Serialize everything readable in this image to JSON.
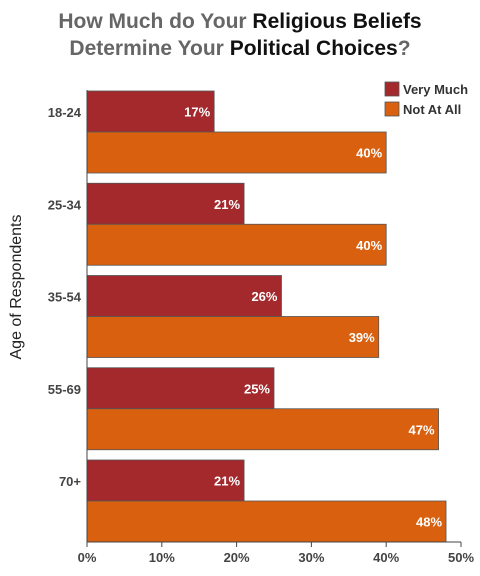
{
  "title": {
    "line1": [
      {
        "text": "How Much do Your ",
        "emphasis": false
      },
      {
        "text": "Religious Beliefs",
        "emphasis": true
      }
    ],
    "line2": [
      {
        "text": "Determine Your ",
        "emphasis": false
      },
      {
        "text": "Political Choices",
        "emphasis": true
      },
      {
        "text": "?",
        "emphasis": false
      }
    ]
  },
  "colors": {
    "very_much": "#a3292c",
    "not_at_all": "#d9600f",
    "axis_text": "#444444",
    "title_gray": "#666666",
    "title_dark": "#111111"
  },
  "chart_data": {
    "type": "bar",
    "orientation": "horizontal",
    "title": "How Much do Your Religious Beliefs Determine Your Political Choices?",
    "ylabel": "Age of Respondents",
    "xlabel": "",
    "categories": [
      "18-24",
      "25-34",
      "35-54",
      "55-69",
      "70+"
    ],
    "series": [
      {
        "name": "Very Much",
        "values": [
          17,
          21,
          26,
          25,
          21
        ]
      },
      {
        "name": "Not At All",
        "values": [
          40,
          40,
          39,
          47,
          48
        ]
      }
    ],
    "data_labels": [
      [
        "17%",
        "21%",
        "26%",
        "25%",
        "21%"
      ],
      [
        "40%",
        "40%",
        "39%",
        "47%",
        "48%"
      ]
    ],
    "xlim": [
      0,
      50
    ],
    "xticks": [
      0,
      10,
      20,
      30,
      40,
      50
    ],
    "xtick_labels": [
      "0%",
      "10%",
      "20%",
      "30%",
      "40%",
      "50%"
    ],
    "legend_position": "top-right",
    "grid": false
  }
}
